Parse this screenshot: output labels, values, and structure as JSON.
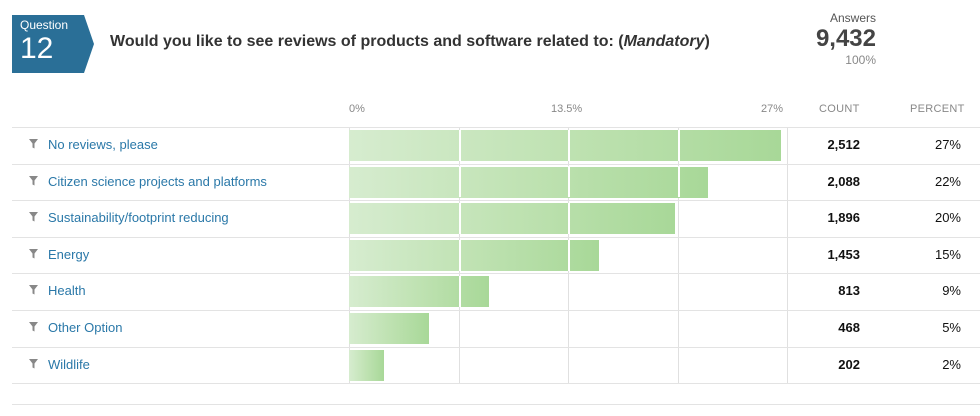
{
  "question": {
    "label": "Question",
    "number": "12",
    "text": "Would  you like to see reviews of products and software related to: (",
    "mandatory": "Mandatory",
    "close": ")"
  },
  "answers": {
    "label": "Answers",
    "count": "9,432",
    "percent": "100%"
  },
  "columns": {
    "count": "COUNT",
    "percent": "PERCENT"
  },
  "colors": {
    "badge": "#2a6f97",
    "bar_start": "#d6eccf",
    "bar_end": "#a8d898",
    "link": "#2a78a8"
  },
  "chart_data": {
    "type": "bar",
    "orientation": "horizontal",
    "x_ticks": [
      "0%",
      "13.5%",
      "27%"
    ],
    "xlim": [
      0,
      27
    ],
    "categories": [
      "No reviews, please",
      "Citizen science projects and platforms",
      "Sustainability/footprint reducing",
      "Energy",
      "Health",
      "Other Option",
      "Wildlife"
    ],
    "counts": [
      "2,512",
      "2,088",
      "1,896",
      "1,453",
      "813",
      "468",
      "202"
    ],
    "percents": [
      "27%",
      "22%",
      "20%",
      "15%",
      "9%",
      "5%",
      "2%"
    ],
    "values": [
      26.63,
      22.14,
      20.1,
      15.4,
      8.62,
      4.96,
      2.14
    ]
  }
}
